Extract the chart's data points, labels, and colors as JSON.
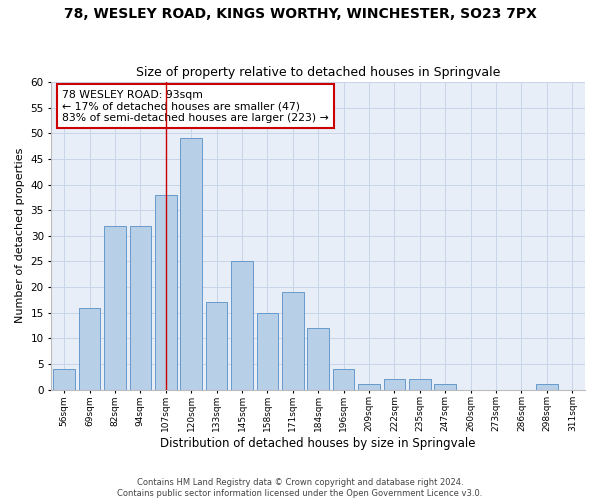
{
  "title": "78, WESLEY ROAD, KINGS WORTHY, WINCHESTER, SO23 7PX",
  "subtitle": "Size of property relative to detached houses in Springvale",
  "xlabel": "Distribution of detached houses by size in Springvale",
  "ylabel": "Number of detached properties",
  "bar_labels": [
    "56sqm",
    "69sqm",
    "82sqm",
    "94sqm",
    "107sqm",
    "120sqm",
    "133sqm",
    "145sqm",
    "158sqm",
    "171sqm",
    "184sqm",
    "196sqm",
    "209sqm",
    "222sqm",
    "235sqm",
    "247sqm",
    "260sqm",
    "273sqm",
    "286sqm",
    "298sqm",
    "311sqm"
  ],
  "bar_values": [
    4,
    16,
    32,
    32,
    38,
    49,
    17,
    25,
    15,
    19,
    12,
    4,
    1,
    2,
    2,
    1,
    0,
    0,
    0,
    1,
    0
  ],
  "bar_color": "#b8cfe8",
  "bar_edge_color": "#6699cc",
  "vline_x": 4.0,
  "vline_color": "#cc0000",
  "annotation_text": "78 WESLEY ROAD: 93sqm\n← 17% of detached houses are smaller (47)\n83% of semi-detached houses are larger (223) →",
  "annotation_box_color": "white",
  "annotation_box_edge_color": "#cc0000",
  "ylim": [
    0,
    60
  ],
  "yticks": [
    0,
    5,
    10,
    15,
    20,
    25,
    30,
    35,
    40,
    45,
    50,
    55,
    60
  ],
  "grid_color": "#c8d4e8",
  "background_color": "#e8eef8",
  "footer_line1": "Contains HM Land Registry data © Crown copyright and database right 2024.",
  "footer_line2": "Contains public sector information licensed under the Open Government Licence v3.0.",
  "title_fontsize": 10,
  "subtitle_fontsize": 9,
  "ylabel_fontsize": 8,
  "xlabel_fontsize": 8.5
}
